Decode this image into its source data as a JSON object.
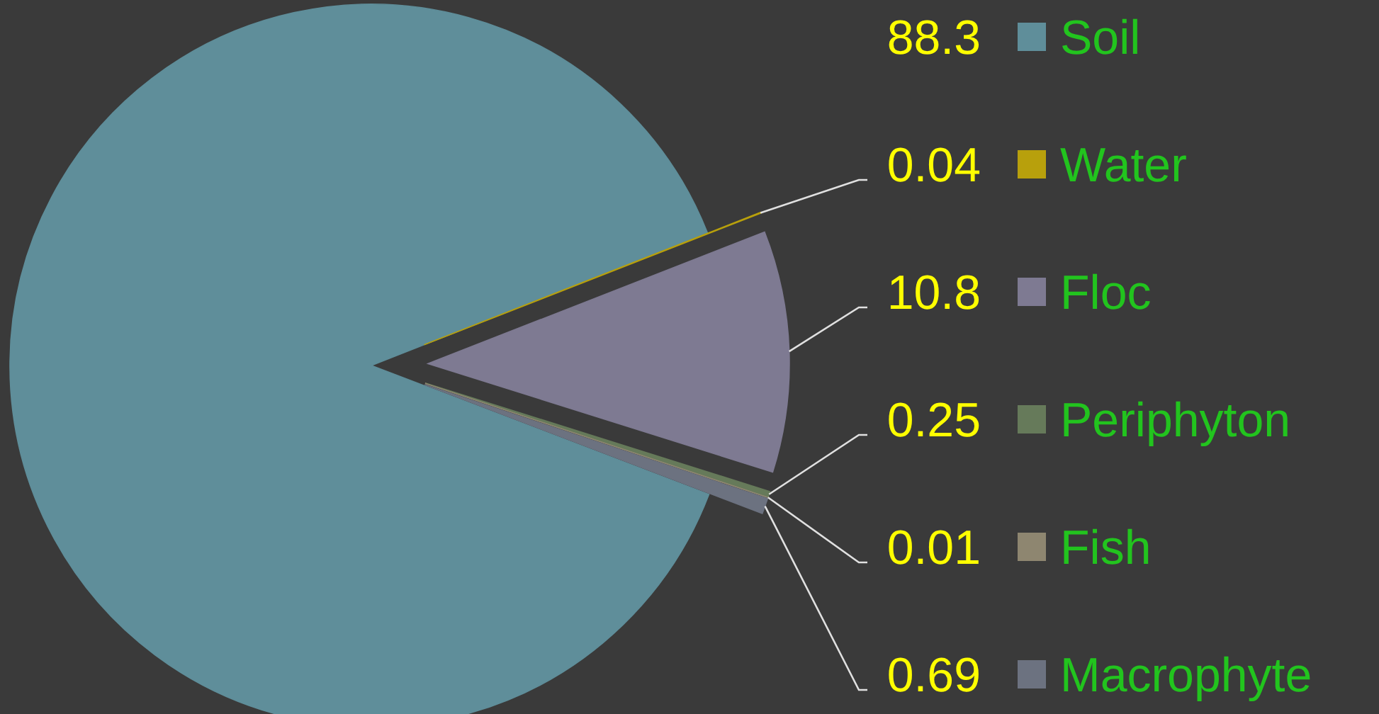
{
  "chart_data": {
    "type": "pie",
    "categories": [
      "Soil",
      "Water",
      "Floc",
      "Periphyton",
      "Fish",
      "Macrophyte"
    ],
    "values": [
      88.3,
      0.04,
      10.8,
      0.25,
      0.01,
      0.69
    ],
    "colors": [
      "#5f8e9a",
      "#b8a00c",
      "#7e7a92",
      "#667a5a",
      "#8e8670",
      "#6c7280"
    ],
    "data_labels": true,
    "legend": "right"
  }
}
